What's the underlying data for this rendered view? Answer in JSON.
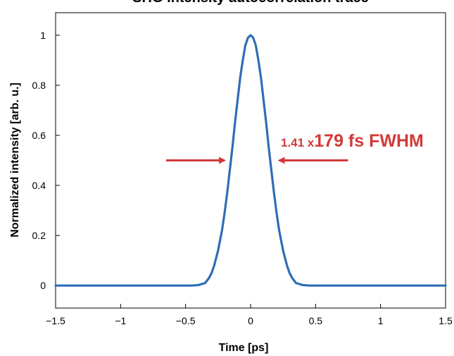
{
  "chart_data": {
    "type": "line",
    "title": "SHG intensity autocorrelation trace",
    "xlabel": "Time [ps]",
    "ylabel": "Normalized intensity [arb. u.]",
    "xlim": [
      -1.5,
      1.5
    ],
    "ylim": [
      -0.09,
      1.09
    ],
    "xticks": [
      -1.5,
      -1,
      -0.5,
      0,
      0.5,
      1,
      1.5
    ],
    "xtick_labels": [
      "−1.5",
      "−1",
      "−0.5",
      "0",
      "0.5",
      "1",
      "1.5"
    ],
    "yticks": [
      0,
      0.2,
      0.4,
      0.6,
      0.8,
      1
    ],
    "ytick_labels": [
      "0",
      "0.2",
      "0.4",
      "0.6",
      "0.8",
      "1"
    ],
    "grid": false,
    "series": [
      {
        "color": "#2f6db5",
        "x": [
          -1.5,
          -1.2,
          -0.9,
          -0.6,
          -0.45,
          -0.4,
          -0.35,
          -0.32,
          -0.3,
          -0.28,
          -0.25,
          -0.22,
          -0.2,
          -0.18,
          -0.16,
          -0.14,
          -0.12,
          -0.1,
          -0.08,
          -0.06,
          -0.04,
          -0.02,
          0,
          0.02,
          0.04,
          0.06,
          0.08,
          0.1,
          0.12,
          0.14,
          0.16,
          0.18,
          0.2,
          0.22,
          0.25,
          0.28,
          0.3,
          0.32,
          0.35,
          0.4,
          0.45,
          0.6,
          0.9,
          1.2,
          1.5
        ],
        "y": [
          0,
          0,
          0,
          0,
          0,
          0.002,
          0.01,
          0.03,
          0.05,
          0.08,
          0.14,
          0.22,
          0.29,
          0.37,
          0.46,
          0.55,
          0.65,
          0.74,
          0.83,
          0.9,
          0.96,
          0.99,
          1,
          0.99,
          0.96,
          0.9,
          0.83,
          0.74,
          0.65,
          0.55,
          0.46,
          0.37,
          0.29,
          0.22,
          0.14,
          0.08,
          0.05,
          0.03,
          0.01,
          0.002,
          0,
          0,
          0,
          0,
          0
        ]
      }
    ],
    "annotation": {
      "text_small": "1.41 x",
      "text_big": "179 fs FWHM",
      "color": "#d23a3a",
      "arrow_y": 0.5,
      "arrow_left": {
        "from_x": -0.65,
        "to_x": -0.2
      },
      "arrow_right": {
        "from_x": 0.75,
        "to_x": 0.22
      }
    }
  }
}
